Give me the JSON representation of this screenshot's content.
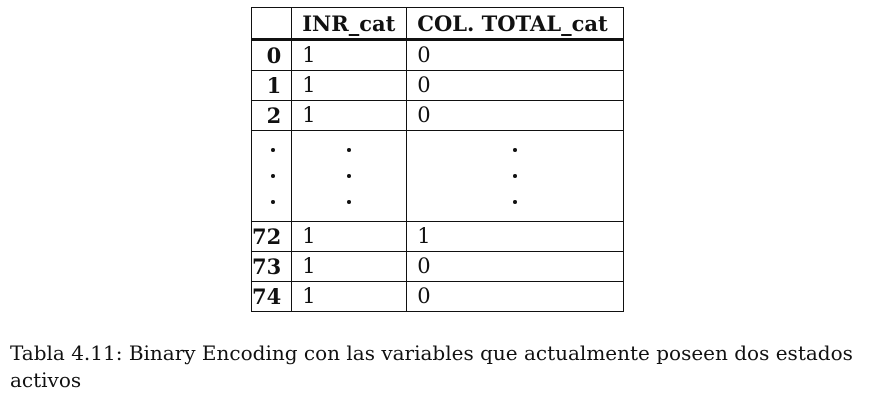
{
  "table": {
    "headers": [
      "",
      "INR_cat",
      "COL. TOTAL_cat"
    ],
    "top_rows": [
      {
        "index": "0",
        "inr": "1",
        "col_total": "0"
      },
      {
        "index": "1",
        "inr": "1",
        "col_total": "0"
      },
      {
        "index": "2",
        "inr": "1",
        "col_total": "0"
      }
    ],
    "ellipsis_rows": 3,
    "bottom_rows": [
      {
        "index": "72",
        "inr": "1",
        "col_total": "1"
      },
      {
        "index": "73",
        "inr": "1",
        "col_total": "0"
      },
      {
        "index": "74",
        "inr": "1",
        "col_total": "0"
      }
    ]
  },
  "caption": "Tabla 4.11: Binary Encoding con las variables que actualmente poseen dos estados activos"
}
